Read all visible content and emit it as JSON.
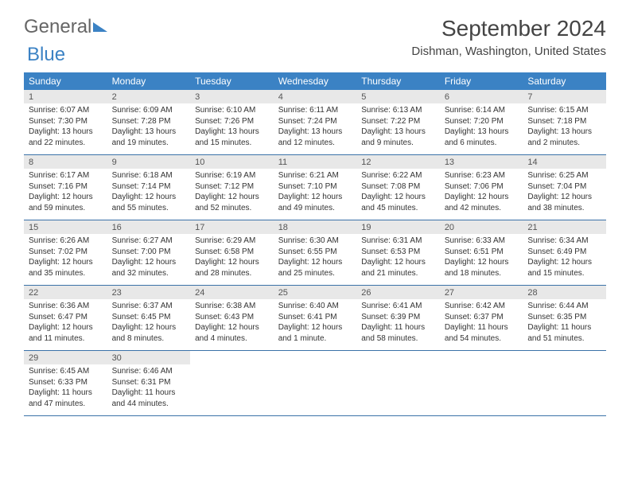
{
  "brand": {
    "part1": "General",
    "part2": "Blue"
  },
  "title": "September 2024",
  "location": "Dishman, Washington, United States",
  "colors": {
    "header_bg": "#3b82c4",
    "header_text": "#ffffff",
    "daynum_bg": "#e8e8e8",
    "rule": "#3b72a8",
    "body_text": "#333333"
  },
  "day_headers": [
    "Sunday",
    "Monday",
    "Tuesday",
    "Wednesday",
    "Thursday",
    "Friday",
    "Saturday"
  ],
  "weeks": [
    [
      {
        "n": "1",
        "sr": "Sunrise: 6:07 AM",
        "ss": "Sunset: 7:30 PM",
        "d1": "Daylight: 13 hours",
        "d2": "and 22 minutes."
      },
      {
        "n": "2",
        "sr": "Sunrise: 6:09 AM",
        "ss": "Sunset: 7:28 PM",
        "d1": "Daylight: 13 hours",
        "d2": "and 19 minutes."
      },
      {
        "n": "3",
        "sr": "Sunrise: 6:10 AM",
        "ss": "Sunset: 7:26 PM",
        "d1": "Daylight: 13 hours",
        "d2": "and 15 minutes."
      },
      {
        "n": "4",
        "sr": "Sunrise: 6:11 AM",
        "ss": "Sunset: 7:24 PM",
        "d1": "Daylight: 13 hours",
        "d2": "and 12 minutes."
      },
      {
        "n": "5",
        "sr": "Sunrise: 6:13 AM",
        "ss": "Sunset: 7:22 PM",
        "d1": "Daylight: 13 hours",
        "d2": "and 9 minutes."
      },
      {
        "n": "6",
        "sr": "Sunrise: 6:14 AM",
        "ss": "Sunset: 7:20 PM",
        "d1": "Daylight: 13 hours",
        "d2": "and 6 minutes."
      },
      {
        "n": "7",
        "sr": "Sunrise: 6:15 AM",
        "ss": "Sunset: 7:18 PM",
        "d1": "Daylight: 13 hours",
        "d2": "and 2 minutes."
      }
    ],
    [
      {
        "n": "8",
        "sr": "Sunrise: 6:17 AM",
        "ss": "Sunset: 7:16 PM",
        "d1": "Daylight: 12 hours",
        "d2": "and 59 minutes."
      },
      {
        "n": "9",
        "sr": "Sunrise: 6:18 AM",
        "ss": "Sunset: 7:14 PM",
        "d1": "Daylight: 12 hours",
        "d2": "and 55 minutes."
      },
      {
        "n": "10",
        "sr": "Sunrise: 6:19 AM",
        "ss": "Sunset: 7:12 PM",
        "d1": "Daylight: 12 hours",
        "d2": "and 52 minutes."
      },
      {
        "n": "11",
        "sr": "Sunrise: 6:21 AM",
        "ss": "Sunset: 7:10 PM",
        "d1": "Daylight: 12 hours",
        "d2": "and 49 minutes."
      },
      {
        "n": "12",
        "sr": "Sunrise: 6:22 AM",
        "ss": "Sunset: 7:08 PM",
        "d1": "Daylight: 12 hours",
        "d2": "and 45 minutes."
      },
      {
        "n": "13",
        "sr": "Sunrise: 6:23 AM",
        "ss": "Sunset: 7:06 PM",
        "d1": "Daylight: 12 hours",
        "d2": "and 42 minutes."
      },
      {
        "n": "14",
        "sr": "Sunrise: 6:25 AM",
        "ss": "Sunset: 7:04 PM",
        "d1": "Daylight: 12 hours",
        "d2": "and 38 minutes."
      }
    ],
    [
      {
        "n": "15",
        "sr": "Sunrise: 6:26 AM",
        "ss": "Sunset: 7:02 PM",
        "d1": "Daylight: 12 hours",
        "d2": "and 35 minutes."
      },
      {
        "n": "16",
        "sr": "Sunrise: 6:27 AM",
        "ss": "Sunset: 7:00 PM",
        "d1": "Daylight: 12 hours",
        "d2": "and 32 minutes."
      },
      {
        "n": "17",
        "sr": "Sunrise: 6:29 AM",
        "ss": "Sunset: 6:58 PM",
        "d1": "Daylight: 12 hours",
        "d2": "and 28 minutes."
      },
      {
        "n": "18",
        "sr": "Sunrise: 6:30 AM",
        "ss": "Sunset: 6:55 PM",
        "d1": "Daylight: 12 hours",
        "d2": "and 25 minutes."
      },
      {
        "n": "19",
        "sr": "Sunrise: 6:31 AM",
        "ss": "Sunset: 6:53 PM",
        "d1": "Daylight: 12 hours",
        "d2": "and 21 minutes."
      },
      {
        "n": "20",
        "sr": "Sunrise: 6:33 AM",
        "ss": "Sunset: 6:51 PM",
        "d1": "Daylight: 12 hours",
        "d2": "and 18 minutes."
      },
      {
        "n": "21",
        "sr": "Sunrise: 6:34 AM",
        "ss": "Sunset: 6:49 PM",
        "d1": "Daylight: 12 hours",
        "d2": "and 15 minutes."
      }
    ],
    [
      {
        "n": "22",
        "sr": "Sunrise: 6:36 AM",
        "ss": "Sunset: 6:47 PM",
        "d1": "Daylight: 12 hours",
        "d2": "and 11 minutes."
      },
      {
        "n": "23",
        "sr": "Sunrise: 6:37 AM",
        "ss": "Sunset: 6:45 PM",
        "d1": "Daylight: 12 hours",
        "d2": "and 8 minutes."
      },
      {
        "n": "24",
        "sr": "Sunrise: 6:38 AM",
        "ss": "Sunset: 6:43 PM",
        "d1": "Daylight: 12 hours",
        "d2": "and 4 minutes."
      },
      {
        "n": "25",
        "sr": "Sunrise: 6:40 AM",
        "ss": "Sunset: 6:41 PM",
        "d1": "Daylight: 12 hours",
        "d2": "and 1 minute."
      },
      {
        "n": "26",
        "sr": "Sunrise: 6:41 AM",
        "ss": "Sunset: 6:39 PM",
        "d1": "Daylight: 11 hours",
        "d2": "and 58 minutes."
      },
      {
        "n": "27",
        "sr": "Sunrise: 6:42 AM",
        "ss": "Sunset: 6:37 PM",
        "d1": "Daylight: 11 hours",
        "d2": "and 54 minutes."
      },
      {
        "n": "28",
        "sr": "Sunrise: 6:44 AM",
        "ss": "Sunset: 6:35 PM",
        "d1": "Daylight: 11 hours",
        "d2": "and 51 minutes."
      }
    ],
    [
      {
        "n": "29",
        "sr": "Sunrise: 6:45 AM",
        "ss": "Sunset: 6:33 PM",
        "d1": "Daylight: 11 hours",
        "d2": "and 47 minutes."
      },
      {
        "n": "30",
        "sr": "Sunrise: 6:46 AM",
        "ss": "Sunset: 6:31 PM",
        "d1": "Daylight: 11 hours",
        "d2": "and 44 minutes."
      },
      null,
      null,
      null,
      null,
      null
    ]
  ]
}
